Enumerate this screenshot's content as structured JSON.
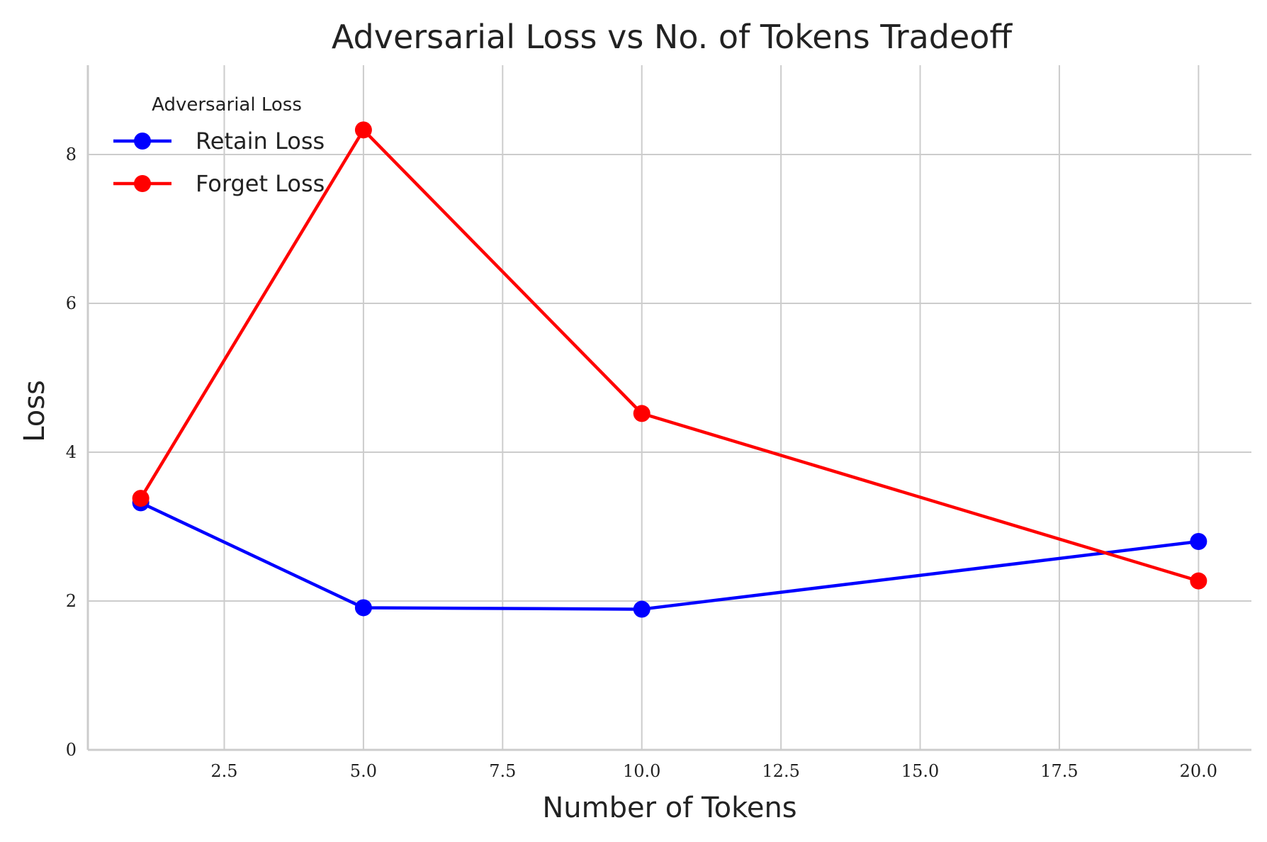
{
  "chart_data": {
    "type": "line",
    "title": "Adversarial Loss vs No. of Tokens Tradeoff",
    "xlabel": "Number of Tokens",
    "ylabel": "Loss",
    "xlim": [
      0.05,
      20.95
    ],
    "ylim": [
      0,
      9.2
    ],
    "xticks": [
      2.5,
      5.0,
      7.5,
      10.0,
      12.5,
      15.0,
      17.5,
      20.0
    ],
    "xtick_labels": [
      "2.5",
      "5.0",
      "7.5",
      "10.0",
      "12.5",
      "15.0",
      "17.5",
      "20.0"
    ],
    "yticks": [
      0,
      2,
      4,
      6,
      8
    ],
    "ytick_labels": [
      "0",
      "2",
      "4",
      "6",
      "8"
    ],
    "grid": true,
    "legend": {
      "title": "Adversarial Loss",
      "position": "top-left"
    },
    "x": [
      1,
      5,
      10,
      20
    ],
    "series": [
      {
        "name": "Retain Loss",
        "color": "#0000ff",
        "marker": "circle",
        "values": [
          3.32,
          1.91,
          1.89,
          2.8
        ]
      },
      {
        "name": "Forget Loss",
        "color": "#ff0000",
        "marker": "circle",
        "values": [
          3.38,
          8.33,
          4.52,
          2.27
        ]
      }
    ]
  }
}
